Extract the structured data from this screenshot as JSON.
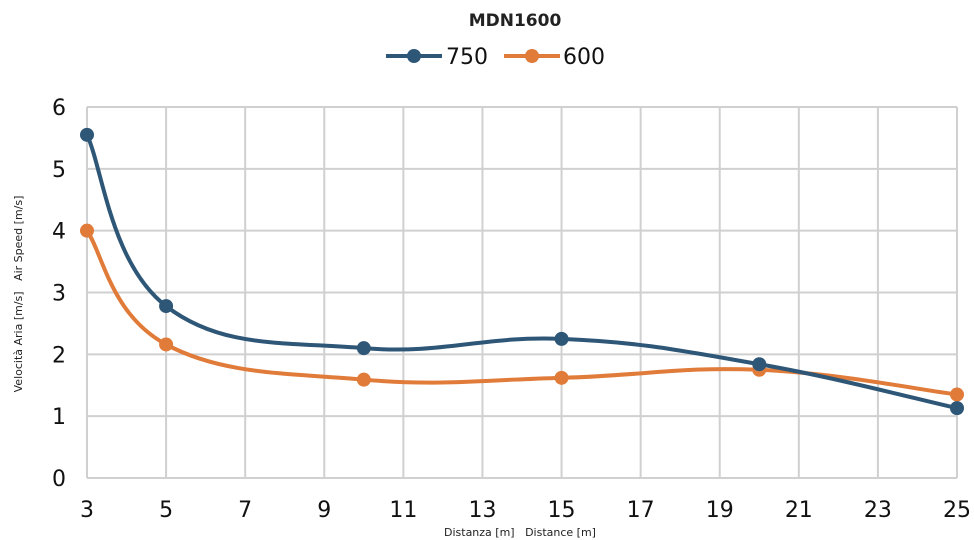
{
  "chart_data": {
    "type": "line",
    "title": "MDN1600",
    "xlabel": "Distanza [m]   Distance [m]",
    "ylabel": "Velocità Aria [m/s]   Air Speed [m/s]",
    "xlim": [
      3,
      25
    ],
    "ylim": [
      0,
      6
    ],
    "xticks": [
      "3",
      "5",
      "7",
      "9",
      "11",
      "13",
      "15",
      "17",
      "19",
      "21",
      "23",
      "25"
    ],
    "yticks": [
      "0",
      "1",
      "2",
      "3",
      "4",
      "5",
      "6"
    ],
    "grid": true,
    "legend_position": "top-center",
    "series": [
      {
        "name": "750",
        "color": "#2e5677",
        "x": [
          3,
          5,
          10,
          15,
          20,
          25
        ],
        "y": [
          5.55,
          2.78,
          2.1,
          2.25,
          1.84,
          1.13
        ]
      },
      {
        "name": "600",
        "color": "#e07b39",
        "x": [
          3,
          5,
          10,
          15,
          20,
          25
        ],
        "y": [
          4.0,
          2.16,
          1.59,
          1.62,
          1.75,
          1.35
        ]
      }
    ]
  }
}
